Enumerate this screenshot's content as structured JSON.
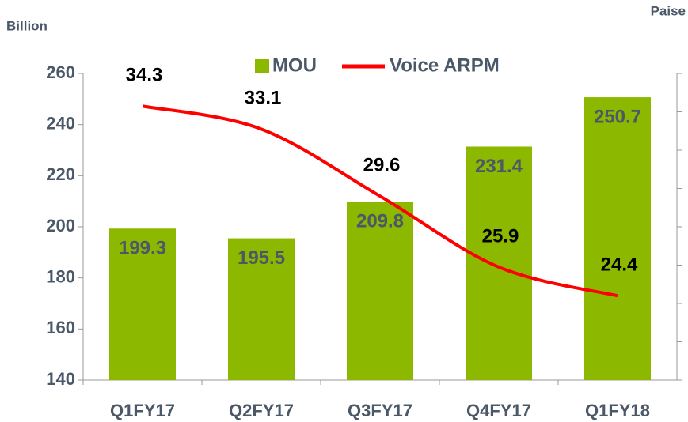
{
  "chart_data": {
    "type": "bar-line",
    "y_axis_label": "Billion",
    "y2_axis_label": "Paise",
    "categories": [
      "Q1FY17",
      "Q2FY17",
      "Q3FY17",
      "Q4FY17",
      "Q1FY18"
    ],
    "series": [
      {
        "name": "MOU",
        "type": "bar",
        "color": "#8cb800",
        "label_color": "#4a5868",
        "values": [
          199.3,
          195.5,
          209.8,
          231.4,
          250.7
        ]
      },
      {
        "name": "Voice ARPM",
        "type": "line",
        "color": "#ff0000",
        "label_color": "#000000",
        "axis": "y2",
        "values": [
          34.3,
          33.1,
          29.6,
          25.9,
          24.4
        ]
      }
    ],
    "ylim": [
      140,
      260
    ],
    "yticks": [
      140,
      160,
      180,
      200,
      220,
      240,
      260
    ],
    "y2lim": [
      20,
      36
    ],
    "y2ticks": [
      20,
      22,
      24,
      26,
      28,
      30,
      32,
      34,
      36
    ],
    "legend": "top"
  }
}
